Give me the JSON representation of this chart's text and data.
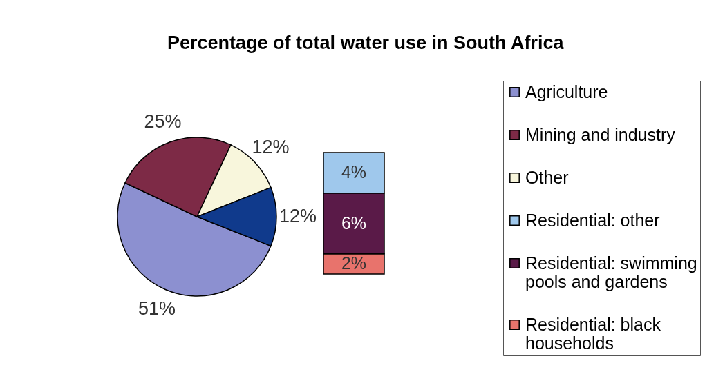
{
  "chart_data": [
    {
      "type": "pie",
      "title": "Percentage of total water use in South Africa",
      "categories": [
        "Agriculture",
        "Mining and industry",
        "Other",
        null
      ],
      "values": [
        51,
        25,
        12,
        12
      ],
      "colors": [
        "#8c90d0",
        "#7d2a46",
        "#f8f6dc",
        "#103a8c"
      ],
      "value_labels": [
        "51%",
        "25%",
        "12%",
        "12%"
      ],
      "legend": "right"
    },
    {
      "type": "bar",
      "stacked": true,
      "categories": [
        null
      ],
      "series": [
        {
          "name": "Residential: black households",
          "color": "#e8736c",
          "values": [
            2
          ],
          "value_labels": [
            "2%"
          ]
        },
        {
          "name": "Residential: swimming pools and gardens",
          "color": "#5a1a48",
          "values": [
            6
          ],
          "value_labels": [
            "6%"
          ]
        },
        {
          "name": "Residential: other",
          "color": "#9fc8ec",
          "values": [
            4
          ],
          "value_labels": [
            "4%"
          ]
        }
      ],
      "legend": "right"
    }
  ]
}
